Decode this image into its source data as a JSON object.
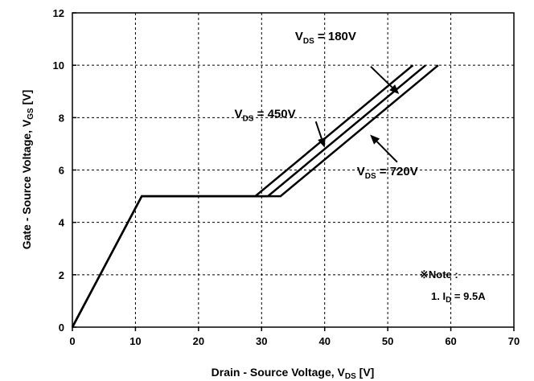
{
  "chart_data": {
    "type": "line",
    "title": "",
    "xlabel": {
      "main": "Drain - Source Voltage, V",
      "sub": "DS",
      "unit": " [V]"
    },
    "ylabel": {
      "main": "Gate - Source Voltage, V",
      "sub": "GS",
      "unit": " [V]"
    },
    "xlim": [
      0,
      70
    ],
    "ylim": [
      0,
      12
    ],
    "xticks": [
      0,
      10,
      20,
      30,
      40,
      50,
      60,
      70
    ],
    "yticks": [
      0,
      2,
      4,
      6,
      8,
      10,
      12
    ],
    "grid": true,
    "series": [
      {
        "x": [
          0,
          11,
          29,
          54
        ],
        "y": [
          0,
          5,
          5,
          10
        ]
      },
      {
        "x": [
          0,
          11,
          31,
          56
        ],
        "y": [
          0,
          5,
          5,
          10
        ]
      },
      {
        "x": [
          0,
          11,
          33,
          58
        ],
        "y": [
          0,
          5,
          5,
          10
        ]
      }
    ],
    "annotations": [
      {
        "main": "V",
        "sub": "DS",
        "rest": " =  180V",
        "text_at": [
          35.3,
          10.95
        ],
        "arrow_from": [
          47.3,
          9.95
        ],
        "arrow_to": [
          51.8,
          8.9
        ]
      },
      {
        "main": "V",
        "sub": "DS",
        "rest": " =  450V",
        "text_at": [
          25.7,
          8.0
        ],
        "arrow_from": [
          38.6,
          7.85
        ],
        "arrow_to": [
          40.0,
          6.85
        ]
      },
      {
        "main": "V",
        "sub": "DS",
        "rest": " =  720V",
        "text_at": [
          45.1,
          5.8
        ],
        "arrow_from": [
          51.5,
          6.3
        ],
        "arrow_to": [
          47.2,
          7.35
        ]
      }
    ],
    "note": {
      "title": "※Note :",
      "line_main": "1. I",
      "line_sub": "D",
      "line_rest": " = 9.5A"
    }
  }
}
